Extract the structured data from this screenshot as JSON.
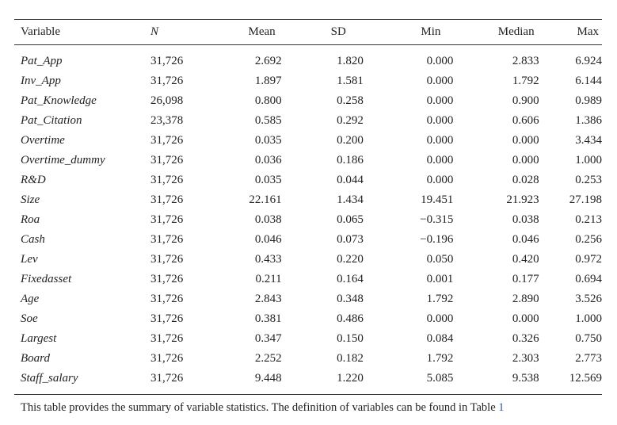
{
  "table": {
    "headers": [
      "Variable",
      "N",
      "Mean",
      "SD",
      "Min",
      "Median",
      "Max"
    ],
    "rows": [
      [
        "Pat_App",
        "31,726",
        "2.692",
        "1.820",
        "0.000",
        "2.833",
        "6.924"
      ],
      [
        "Inv_App",
        "31,726",
        "1.897",
        "1.581",
        "0.000",
        "1.792",
        "6.144"
      ],
      [
        "Pat_Knowledge",
        "26,098",
        "0.800",
        "0.258",
        "0.000",
        "0.900",
        "0.989"
      ],
      [
        "Pat_Citation",
        "23,378",
        "0.585",
        "0.292",
        "0.000",
        "0.606",
        "1.386"
      ],
      [
        "Overtime",
        "31,726",
        "0.035",
        "0.200",
        "0.000",
        "0.000",
        "3.434"
      ],
      [
        "Overtime_dummy",
        "31,726",
        "0.036",
        "0.186",
        "0.000",
        "0.000",
        "1.000"
      ],
      [
        "R&D",
        "31,726",
        "0.035",
        "0.044",
        "0.000",
        "0.028",
        "0.253"
      ],
      [
        "Size",
        "31,726",
        "22.161",
        "1.434",
        "19.451",
        "21.923",
        "27.198"
      ],
      [
        "Roa",
        "31,726",
        "0.038",
        "0.065",
        "−0.315",
        "0.038",
        "0.213"
      ],
      [
        "Cash",
        "31,726",
        "0.046",
        "0.073",
        "−0.196",
        "0.046",
        "0.256"
      ],
      [
        "Lev",
        "31,726",
        "0.433",
        "0.220",
        "0.050",
        "0.420",
        "0.972"
      ],
      [
        "Fixedasset",
        "31,726",
        "0.211",
        "0.164",
        "0.001",
        "0.177",
        "0.694"
      ],
      [
        "Age",
        "31,726",
        "2.843",
        "0.348",
        "1.792",
        "2.890",
        "3.526"
      ],
      [
        "Soe",
        "31,726",
        "0.381",
        "0.486",
        "0.000",
        "0.000",
        "1.000"
      ],
      [
        "Largest",
        "31,726",
        "0.347",
        "0.150",
        "0.084",
        "0.326",
        "0.750"
      ],
      [
        "Board",
        "31,726",
        "2.252",
        "0.182",
        "1.792",
        "2.303",
        "2.773"
      ],
      [
        "Staff_salary",
        "31,726",
        "9.448",
        "1.220",
        "5.085",
        "9.538",
        "12.569"
      ]
    ]
  },
  "note": {
    "text": "This table provides the summary of variable statistics. The definition of variables can be found in Table ",
    "ref": "1"
  },
  "colors": {
    "text": "#222222",
    "rule": "#333333",
    "link": "#2a52be"
  }
}
